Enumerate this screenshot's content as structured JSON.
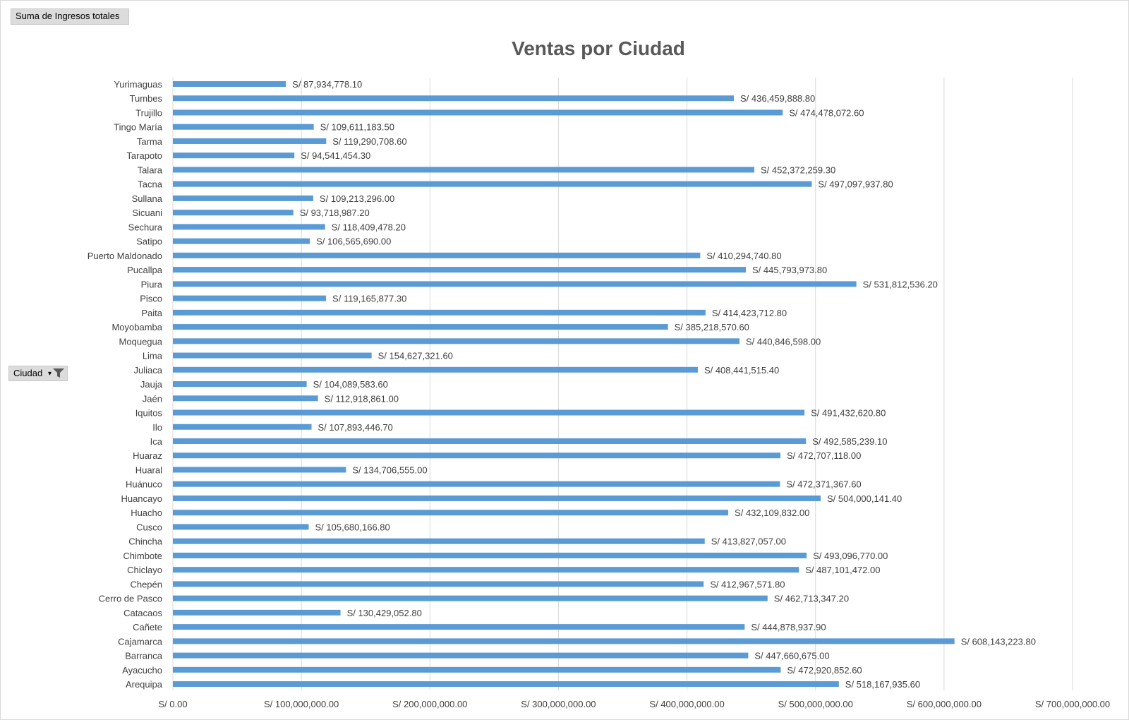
{
  "value_field_button": {
    "label": "Suma de Ingresos totales"
  },
  "axis_field_button": {
    "label": "Ciudad"
  },
  "chart_data": {
    "type": "bar",
    "orientation": "horizontal",
    "title": "Ventas por Ciudad",
    "xlabel": "",
    "ylabel": "",
    "xlim": [
      0,
      700000000
    ],
    "grid": true,
    "legend": "none",
    "bar_color": "#5b9bd5",
    "x_ticks": [
      {
        "value": 0,
        "label": "S/ 0.00"
      },
      {
        "value": 100000000,
        "label": "S/ 100,000,000.00"
      },
      {
        "value": 200000000,
        "label": "S/ 200,000,000.00"
      },
      {
        "value": 300000000,
        "label": "S/ 300,000,000.00"
      },
      {
        "value": 400000000,
        "label": "S/ 400,000,000.00"
      },
      {
        "value": 500000000,
        "label": "S/ 500,000,000.00"
      },
      {
        "value": 600000000,
        "label": "S/ 600,000,000.00"
      },
      {
        "value": 700000000,
        "label": "S/ 700,000,000.00"
      }
    ],
    "categories": [
      "Yurimaguas",
      "Tumbes",
      "Trujillo",
      "Tingo María",
      "Tarma",
      "Tarapoto",
      "Talara",
      "Tacna",
      "Sullana",
      "Sicuani",
      "Sechura",
      "Satipo",
      "Puerto Maldonado",
      "Pucallpa",
      "Piura",
      "Pisco",
      "Paita",
      "Moyobamba",
      "Moquegua",
      "Lima",
      "Juliaca",
      "Jauja",
      "Jaén",
      "Iquitos",
      "Ilo",
      "Ica",
      "Huaraz",
      "Huaral",
      "Huánuco",
      "Huancayo",
      "Huacho",
      "Cusco",
      "Chincha",
      "Chimbote",
      "Chiclayo",
      "Chepén",
      "Cerro de Pasco",
      "Catacaos",
      "Cañete",
      "Cajamarca",
      "Barranca",
      "Ayacucho",
      "Arequipa"
    ],
    "values": [
      87934778.1,
      436459888.8,
      474478072.6,
      109611183.5,
      119290708.6,
      94541454.3,
      452372259.3,
      497097937.8,
      109213296.0,
      93718987.2,
      118409478.2,
      106565690.0,
      410294740.8,
      445793973.8,
      531812536.2,
      119165877.3,
      414423712.8,
      385218570.6,
      440846598.0,
      154627321.6,
      408441515.4,
      104089583.6,
      112918861.0,
      491432620.8,
      107893446.7,
      492585239.1,
      472707118.0,
      134706555.0,
      472371367.6,
      504000141.4,
      432109832.0,
      105680166.8,
      413827057.0,
      493096770.0,
      487101472.0,
      412967571.8,
      462713347.2,
      130429052.8,
      444878937.9,
      608143223.8,
      447660675.0,
      472920852.6,
      518167935.6
    ],
    "data_labels": [
      "S/ 87,934,778.10",
      "S/ 436,459,888.80",
      "S/ 474,478,072.60",
      "S/ 109,611,183.50",
      "S/ 119,290,708.60",
      "S/ 94,541,454.30",
      "S/ 452,372,259.30",
      "S/ 497,097,937.80",
      "S/ 109,213,296.00",
      "S/ 93,718,987.20",
      "S/ 118,409,478.20",
      "S/ 106,565,690.00",
      "S/ 410,294,740.80",
      "S/ 445,793,973.80",
      "S/ 531,812,536.20",
      "S/ 119,165,877.30",
      "S/ 414,423,712.80",
      "S/ 385,218,570.60",
      "S/ 440,846,598.00",
      "S/ 154,627,321.60",
      "S/ 408,441,515.40",
      "S/ 104,089,583.60",
      "S/ 112,918,861.00",
      "S/ 491,432,620.80",
      "S/ 107,893,446.70",
      "S/ 492,585,239.10",
      "S/ 472,707,118.00",
      "S/ 134,706,555.00",
      "S/ 472,371,367.60",
      "S/ 504,000,141.40",
      "S/ 432,109,832.00",
      "S/ 105,680,166.80",
      "S/ 413,827,057.00",
      "S/ 493,096,770.00",
      "S/ 487,101,472.00",
      "S/ 412,967,571.80",
      "S/ 462,713,347.20",
      "S/ 130,429,052.80",
      "S/ 444,878,937.90",
      "S/ 608,143,223.80",
      "S/ 447,660,675.00",
      "S/ 472,920,852.60",
      "S/ 518,167,935.60"
    ]
  }
}
